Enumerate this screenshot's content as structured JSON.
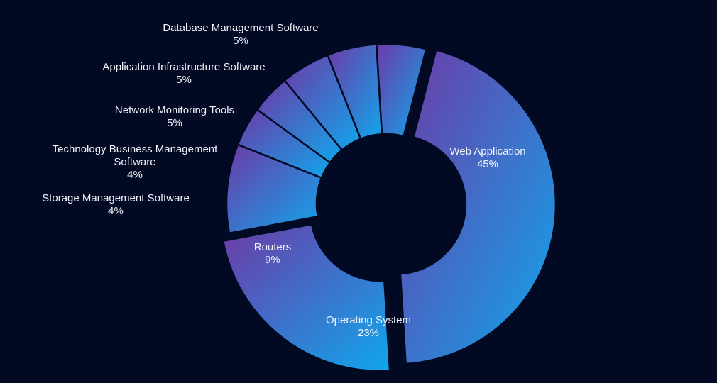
{
  "chart_data": {
    "type": "pie",
    "variant": "donut",
    "title": "",
    "categories": [
      "Web Application",
      "Operating System",
      "Routers",
      "Storage Management Software",
      "Technology Business Management Software",
      "Network Monitoring Tools",
      "Application Infrastructure Software",
      "Database Management Software"
    ],
    "values": [
      45,
      23,
      9,
      4,
      4,
      5,
      5,
      5
    ],
    "value_labels": [
      "45%",
      "23%",
      "9%",
      "4%",
      "4%",
      "5%",
      "5%",
      "5%"
    ],
    "label_lines": [
      [
        "Web Application"
      ],
      [
        "Operating System"
      ],
      [
        "Routers"
      ],
      [
        "Storage Management Software"
      ],
      [
        "Technology Business Management",
        "Software"
      ],
      [
        "Network Monitoring Tools"
      ],
      [
        "Application Infrastructure Software"
      ],
      [
        "Database Management Software"
      ]
    ],
    "exploded": [
      "Web Application",
      "Operating System"
    ],
    "legend": "none",
    "colors": {
      "background": "#020a23",
      "gradient_start": "#6d3aa6",
      "gradient_end": "#10a6ec",
      "separator": "#020a23",
      "label": "#f2f4fa"
    }
  }
}
